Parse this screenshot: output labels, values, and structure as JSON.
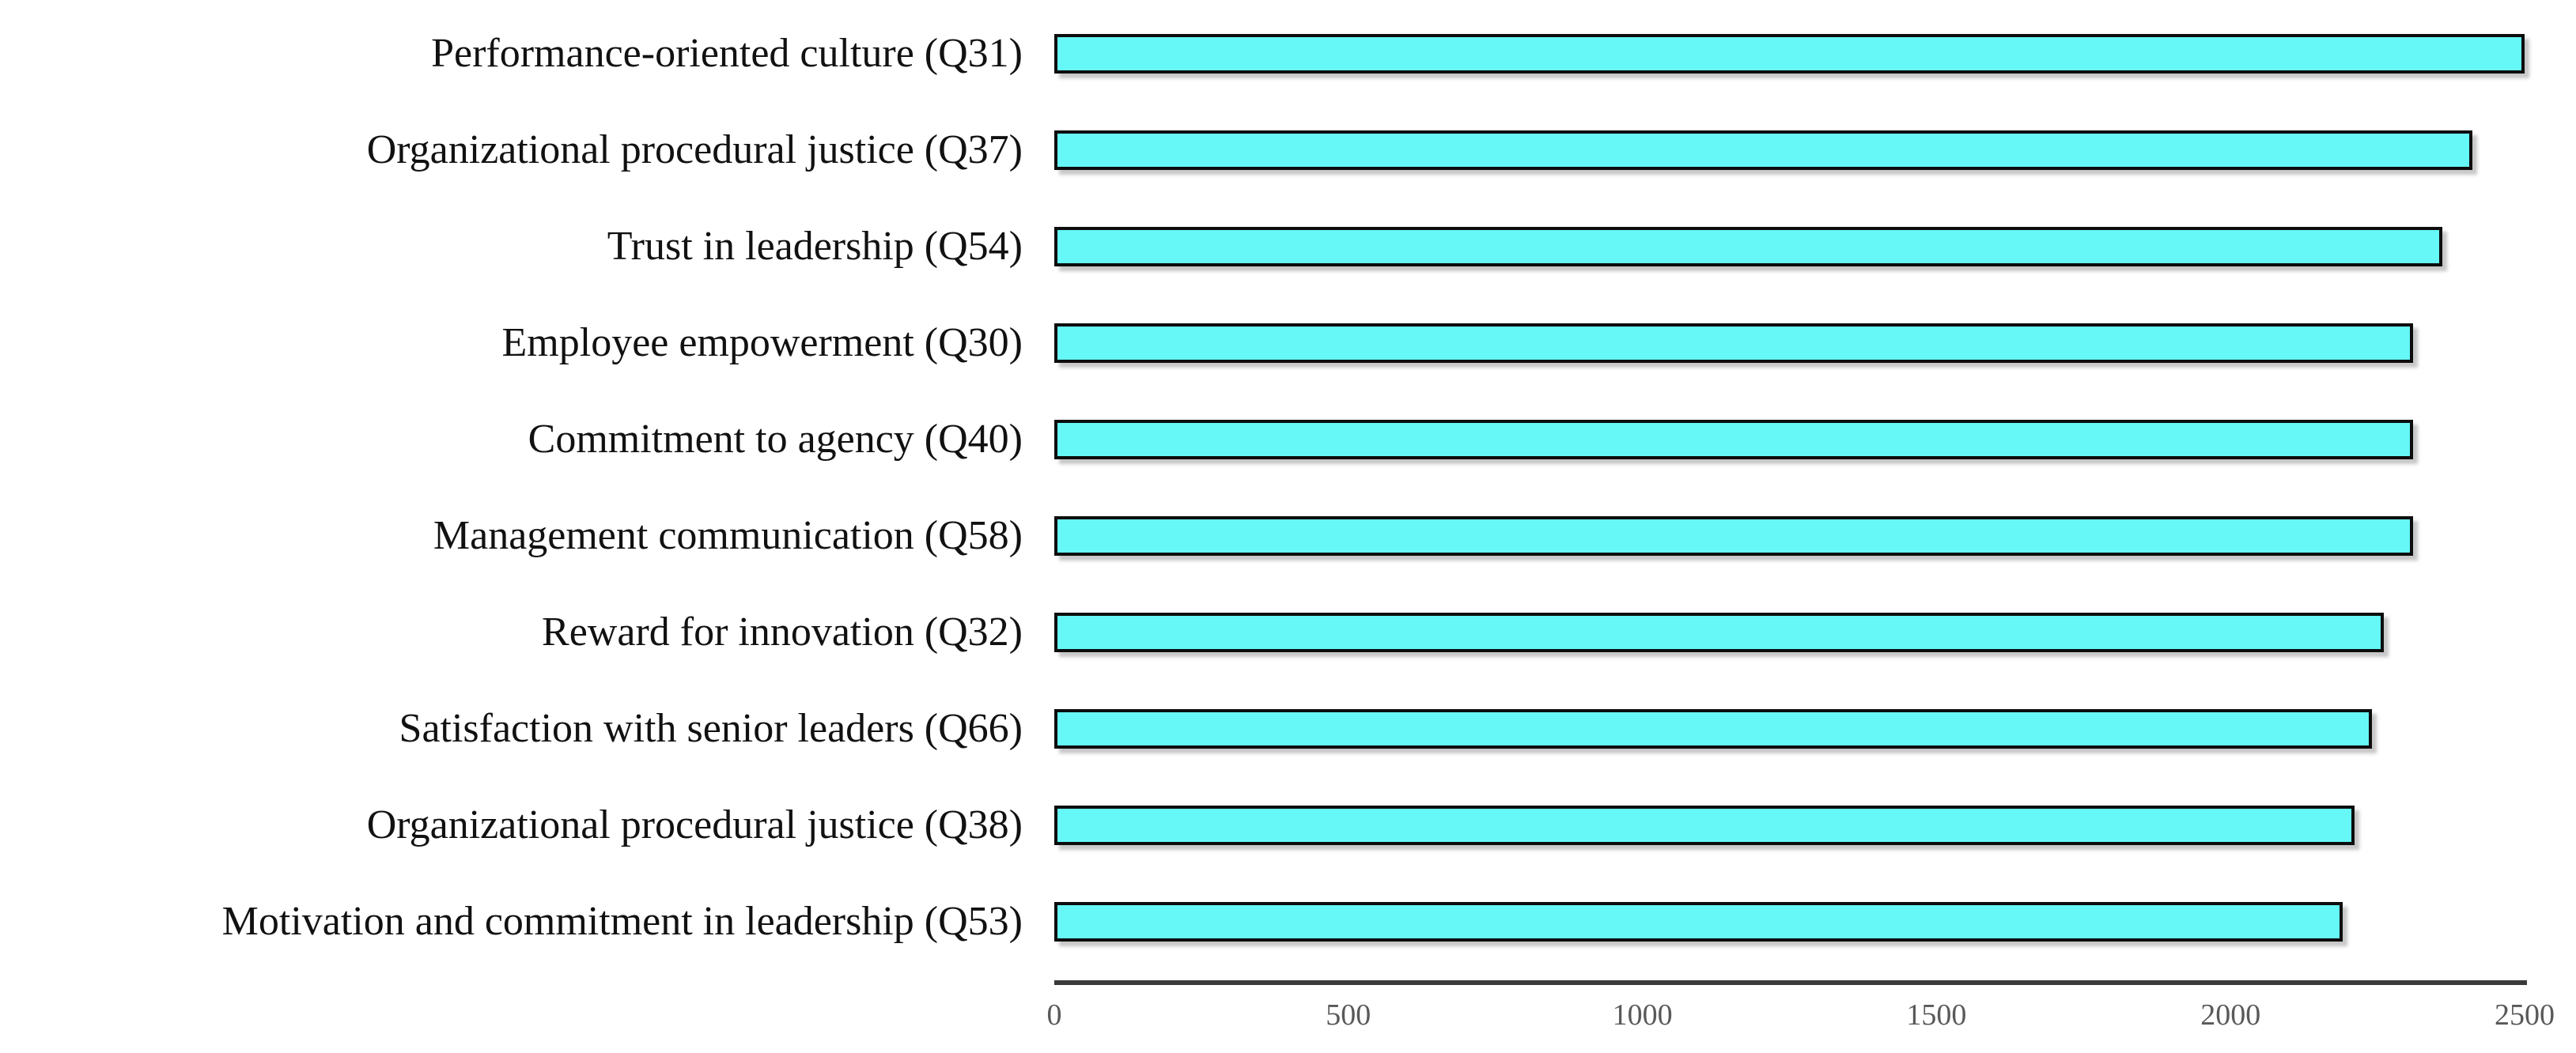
{
  "chart_data": {
    "type": "bar",
    "orientation": "horizontal",
    "title": "",
    "xlabel": "",
    "ylabel": "",
    "categories": [
      "Performance-oriented culture (Q31)",
      "Organizational procedural justice (Q37)",
      "Trust in leadership (Q54)",
      "Employee empowerment (Q30)",
      "Commitment to agency (Q40)",
      "Management communication (Q58)",
      "Reward for innovation (Q32)",
      "Satisfaction with senior leaders (Q66)",
      "Organizational procedural justice (Q38)",
      "Motivation and commitment in leadership (Q53)"
    ],
    "values": [
      2500,
      2400,
      2350,
      2300,
      2300,
      2300,
      2250,
      2230,
      2200,
      2180
    ],
    "xlim": [
      0,
      2500
    ],
    "x_ticks": [
      "0",
      "500",
      "1000",
      "1500",
      "2000",
      "2500"
    ],
    "x_tick_values": [
      0,
      500,
      1000,
      1500,
      2000,
      2500
    ],
    "grid": false,
    "legend": false,
    "bar_order": "top_to_bottom_descending",
    "colors": {
      "bar_fill": "#66f7f7",
      "bar_border": "#0d0d0d",
      "axis_line": "#3a3a3a",
      "tick_label": "#595959",
      "category_label": "#111111",
      "background": "#ffffff"
    }
  }
}
